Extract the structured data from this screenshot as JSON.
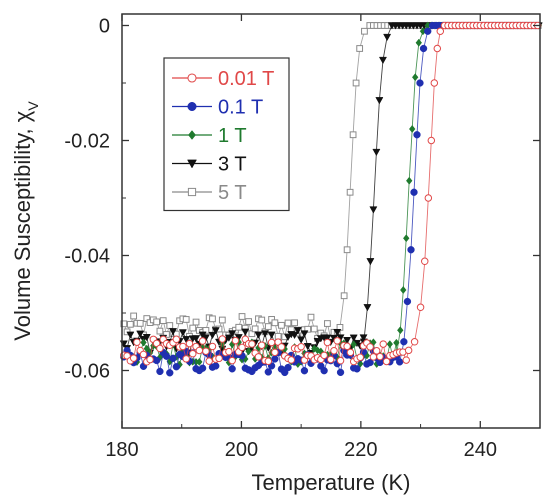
{
  "chart_data": {
    "type": "scatter",
    "xlabel": "Temperature (K)",
    "ylabel": "Volume Susceptibility, χ",
    "ylabel_subscript": "V",
    "xlim": [
      180,
      250
    ],
    "ylim": [
      -0.07,
      0.002
    ],
    "xticks": [
      180,
      200,
      220,
      240
    ],
    "yticks": [
      0,
      -0.02,
      -0.04,
      -0.06
    ],
    "xtick_labels": [
      "180",
      "200",
      "220",
      "240"
    ],
    "ytick_labels": [
      "0",
      "-0.02",
      "-0.04",
      "-0.06"
    ],
    "grid": false,
    "legend_position": "upper-left",
    "series": [
      {
        "name": "0.01 T",
        "color": "#e04848",
        "marker": "open-circle",
        "baseline": -0.0565,
        "transition": [
          [
            228.0,
            -0.0565
          ],
          [
            229.0,
            -0.055
          ],
          [
            230.0,
            -0.049
          ],
          [
            230.7,
            -0.041
          ],
          [
            231.3,
            -0.03
          ],
          [
            231.8,
            -0.02
          ],
          [
            232.3,
            -0.01
          ],
          [
            232.8,
            -0.004
          ],
          [
            233.3,
            -0.001
          ],
          [
            234.0,
            0
          ]
        ]
      },
      {
        "name": "0.1 T",
        "color": "#1f2fb0",
        "marker": "filled-circle",
        "baseline": -0.0585,
        "transition": [
          [
            226.5,
            -0.0585
          ],
          [
            227.2,
            -0.055
          ],
          [
            227.8,
            -0.048
          ],
          [
            228.4,
            -0.039
          ],
          [
            228.9,
            -0.029
          ],
          [
            229.4,
            -0.019
          ],
          [
            229.9,
            -0.01
          ],
          [
            230.5,
            -0.004
          ],
          [
            231.2,
            -0.001
          ],
          [
            232.0,
            0
          ]
        ]
      },
      {
        "name": "1 T",
        "color": "#1f7a2e",
        "marker": "filled-diamond",
        "baseline": -0.057,
        "transition": [
          [
            226.0,
            -0.057
          ],
          [
            226.6,
            -0.053
          ],
          [
            227.1,
            -0.046
          ],
          [
            227.6,
            -0.037
          ],
          [
            228.1,
            -0.027
          ],
          [
            228.6,
            -0.018
          ],
          [
            229.1,
            -0.009
          ],
          [
            229.7,
            -0.003
          ],
          [
            230.4,
            -0.001
          ],
          [
            231.2,
            0
          ]
        ]
      },
      {
        "name": "3 T",
        "color": "#111111",
        "marker": "filled-triangle-down",
        "baseline": -0.055,
        "transition": [
          [
            220.5,
            -0.055
          ],
          [
            221.1,
            -0.049
          ],
          [
            221.6,
            -0.041
          ],
          [
            222.1,
            -0.032
          ],
          [
            222.6,
            -0.022
          ],
          [
            223.1,
            -0.013
          ],
          [
            223.7,
            -0.006
          ],
          [
            224.4,
            -0.002
          ],
          [
            225.2,
            0
          ]
        ]
      },
      {
        "name": "5 T",
        "color": "#8a8a8a",
        "marker": "open-square",
        "baseline": -0.0525,
        "transition": [
          [
            216.5,
            -0.0525
          ],
          [
            217.2,
            -0.047
          ],
          [
            217.7,
            -0.039
          ],
          [
            218.2,
            -0.029
          ],
          [
            218.7,
            -0.019
          ],
          [
            219.2,
            -0.01
          ],
          [
            219.8,
            -0.004
          ],
          [
            220.6,
            -0.001
          ],
          [
            221.5,
            0
          ]
        ]
      }
    ]
  }
}
